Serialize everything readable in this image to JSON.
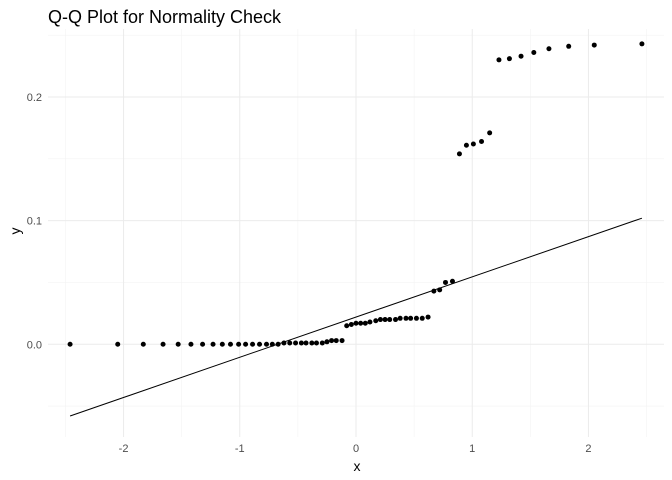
{
  "chart_data": {
    "type": "scatter",
    "title": "Q-Q Plot for Normality Check",
    "xlabel": "x",
    "ylabel": "y",
    "xlim": [
      -2.65,
      2.65
    ],
    "ylim": [
      -0.075,
      0.255
    ],
    "x_ticks": [
      -2,
      -1,
      0,
      1,
      2
    ],
    "x_tick_labels": [
      "-2",
      "-1",
      "0",
      "1",
      "2"
    ],
    "y_ticks": [
      0.0,
      0.1,
      0.2
    ],
    "y_tick_labels": [
      "0.0",
      "0.1",
      "0.2"
    ],
    "grid": true,
    "reference_line": {
      "x": [
        -2.46,
        2.46
      ],
      "y": [
        -0.058,
        0.102
      ]
    },
    "points": [
      {
        "x": -2.46,
        "y": 0.0
      },
      {
        "x": -2.05,
        "y": 0.0
      },
      {
        "x": -1.83,
        "y": 0.0
      },
      {
        "x": -1.66,
        "y": 0.0
      },
      {
        "x": -1.53,
        "y": 0.0
      },
      {
        "x": -1.42,
        "y": 0.0
      },
      {
        "x": -1.32,
        "y": 0.0
      },
      {
        "x": -1.23,
        "y": 0.0
      },
      {
        "x": -1.15,
        "y": 0.0
      },
      {
        "x": -1.08,
        "y": 0.0
      },
      {
        "x": -1.01,
        "y": 0.0
      },
      {
        "x": -0.95,
        "y": 0.0
      },
      {
        "x": -0.89,
        "y": 0.0
      },
      {
        "x": -0.83,
        "y": 0.0
      },
      {
        "x": -0.77,
        "y": 0.0
      },
      {
        "x": -0.72,
        "y": 0.0
      },
      {
        "x": -0.67,
        "y": 0.0
      },
      {
        "x": -0.62,
        "y": 0.001
      },
      {
        "x": -0.57,
        "y": 0.001
      },
      {
        "x": -0.52,
        "y": 0.001
      },
      {
        "x": -0.47,
        "y": 0.001
      },
      {
        "x": -0.43,
        "y": 0.001
      },
      {
        "x": -0.38,
        "y": 0.001
      },
      {
        "x": -0.34,
        "y": 0.001
      },
      {
        "x": -0.29,
        "y": 0.001
      },
      {
        "x": -0.25,
        "y": 0.002
      },
      {
        "x": -0.21,
        "y": 0.003
      },
      {
        "x": -0.17,
        "y": 0.003
      },
      {
        "x": -0.12,
        "y": 0.003
      },
      {
        "x": -0.08,
        "y": 0.015
      },
      {
        "x": -0.04,
        "y": 0.016
      },
      {
        "x": 0.0,
        "y": 0.017
      },
      {
        "x": 0.04,
        "y": 0.017
      },
      {
        "x": 0.08,
        "y": 0.017
      },
      {
        "x": 0.12,
        "y": 0.018
      },
      {
        "x": 0.17,
        "y": 0.019
      },
      {
        "x": 0.21,
        "y": 0.02
      },
      {
        "x": 0.25,
        "y": 0.02
      },
      {
        "x": 0.29,
        "y": 0.02
      },
      {
        "x": 0.34,
        "y": 0.02
      },
      {
        "x": 0.38,
        "y": 0.021
      },
      {
        "x": 0.43,
        "y": 0.021
      },
      {
        "x": 0.47,
        "y": 0.021
      },
      {
        "x": 0.52,
        "y": 0.021
      },
      {
        "x": 0.57,
        "y": 0.021
      },
      {
        "x": 0.62,
        "y": 0.022
      },
      {
        "x": 0.67,
        "y": 0.043
      },
      {
        "x": 0.72,
        "y": 0.044
      },
      {
        "x": 0.77,
        "y": 0.05
      },
      {
        "x": 0.83,
        "y": 0.051
      },
      {
        "x": 0.89,
        "y": 0.154
      },
      {
        "x": 0.95,
        "y": 0.161
      },
      {
        "x": 1.01,
        "y": 0.162
      },
      {
        "x": 1.08,
        "y": 0.164
      },
      {
        "x": 1.15,
        "y": 0.171
      },
      {
        "x": 1.23,
        "y": 0.23
      },
      {
        "x": 1.32,
        "y": 0.231
      },
      {
        "x": 1.42,
        "y": 0.233
      },
      {
        "x": 1.53,
        "y": 0.236
      },
      {
        "x": 1.66,
        "y": 0.239
      },
      {
        "x": 1.83,
        "y": 0.241
      },
      {
        "x": 2.05,
        "y": 0.242
      },
      {
        "x": 2.46,
        "y": 0.243
      }
    ]
  }
}
